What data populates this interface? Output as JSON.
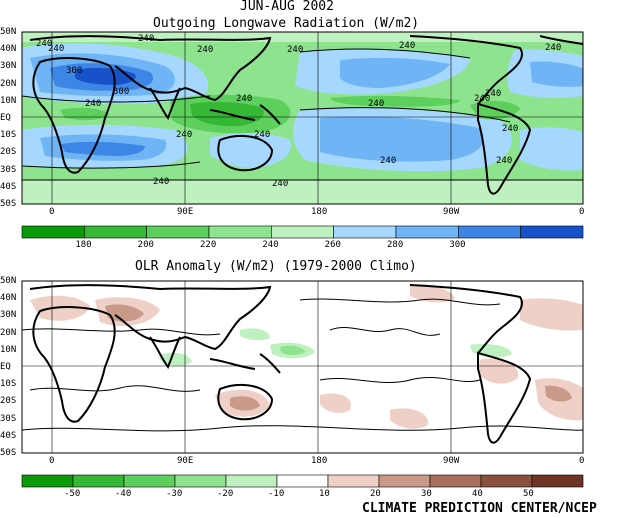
{
  "header": {
    "period": "JUN-AUG 2002",
    "top_title": "Outgoing Longwave Radiation (W/m2)",
    "bottom_title": "OLR Anomaly (W/m2) (1979-2000 Climo)",
    "credit": "CLIMATE PREDICTION CENTER/NCEP"
  },
  "axes": {
    "lat_labels": [
      "50N",
      "40N",
      "30N",
      "20N",
      "10N",
      "EQ",
      "10S",
      "20S",
      "30S",
      "40S",
      "50S"
    ],
    "lon_labels": [
      "0",
      "90E",
      "180",
      "90W",
      "0"
    ]
  },
  "top_map": {
    "contour_labels": [
      "240",
      "240",
      "240",
      "240",
      "240",
      "300",
      "300",
      "240",
      "240",
      "240",
      "240",
      "240",
      "240",
      "240",
      "240",
      "240",
      "240",
      "240",
      "240",
      "240",
      "240"
    ]
  },
  "top_colorbar": {
    "colors": [
      "#0a9a0a",
      "#35b835",
      "#5ccf5c",
      "#8ee38e",
      "#bff0bf",
      "#a6d8ff",
      "#6fb4f5",
      "#3d86e6",
      "#1852c8"
    ],
    "labels": [
      "180",
      "200",
      "220",
      "240",
      "260",
      "280",
      "300"
    ]
  },
  "bottom_colorbar": {
    "colors": [
      "#0a9a0a",
      "#35b835",
      "#5ccf5c",
      "#8ee38e",
      "#bff0bf",
      "#ffffff",
      "#eed0c6",
      "#c99a8a",
      "#a86e5e",
      "#8a4f3e",
      "#6e3426"
    ],
    "labels": [
      "-50",
      "-40",
      "-30",
      "-20",
      "-10",
      "10",
      "20",
      "30",
      "40",
      "50"
    ]
  }
}
